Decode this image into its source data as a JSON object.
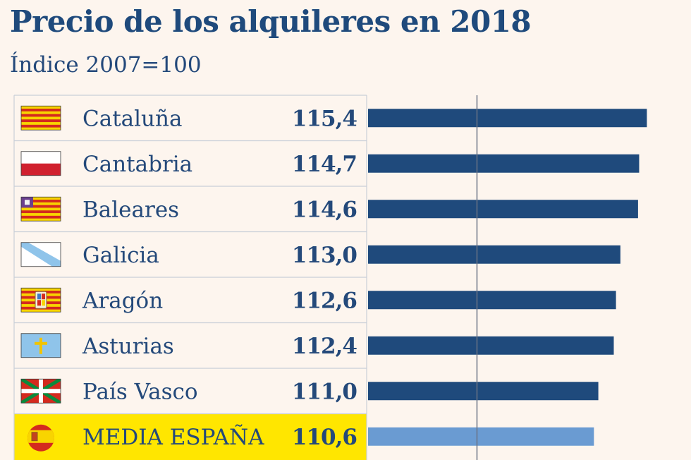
{
  "chart_data": {
    "type": "bar",
    "orientation": "horizontal",
    "title": "Precio de los alquileres en 2018",
    "subtitle": "Índice 2007=100",
    "reference_value": 100,
    "xlim": [
      90,
      119.4
    ],
    "categories": [
      "Cataluña",
      "Cantabria",
      "Baleares",
      "Galicia",
      "Aragón",
      "Asturias",
      "País Vasco",
      "MEDIA ESPAÑA"
    ],
    "values": [
      115.4,
      114.7,
      114.6,
      113.0,
      112.6,
      112.4,
      111.0,
      110.6
    ],
    "value_labels": [
      "115,4",
      "114,7",
      "114,6",
      "113,0",
      "112,6",
      "112,4",
      "111,0",
      "110,6"
    ],
    "flags": [
      "cataluna-flag",
      "cantabria-flag",
      "baleares-flag",
      "galicia-flag",
      "aragon-flag",
      "asturias-flag",
      "pais-vasco-flag",
      "espana-flag"
    ],
    "highlight_index": 7
  },
  "colors": {
    "background": "#fdf5ee",
    "bar": "#1f4a7c",
    "bar_highlight": "#6a9bd2",
    "highlight_row": "#ffe600",
    "text": "#24497a",
    "grid": "#c9cfd8",
    "reference_line": "#6b7384"
  }
}
